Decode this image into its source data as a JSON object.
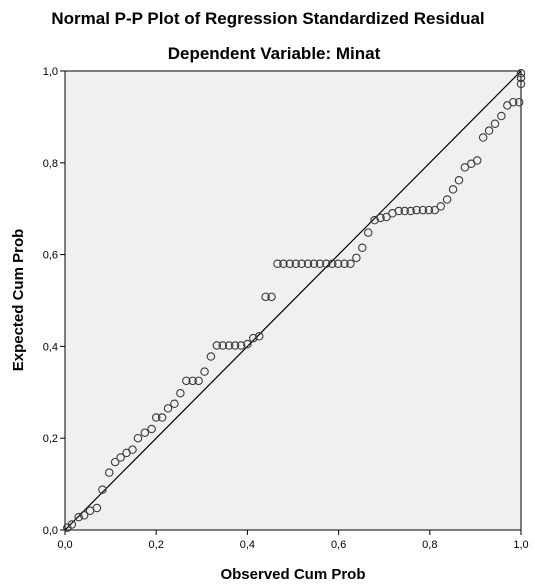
{
  "chart_data": {
    "type": "scatter",
    "title": "Normal P-P Plot of Regression Standardized Residual",
    "subtitle": "Dependent Variable: Minat",
    "xlabel": "Observed Cum Prob",
    "ylabel": "Expected Cum Prob",
    "xlim": [
      0,
      1
    ],
    "ylim": [
      0,
      1
    ],
    "x_ticks": [
      "0,0",
      "0,2",
      "0,4",
      "0,6",
      "0,8",
      "1,0"
    ],
    "y_ticks": [
      "0,0",
      "0,2",
      "0,4",
      "0,6",
      "0,8",
      "1,0"
    ],
    "grid": false,
    "background": "#f0f0f0",
    "reference_line": {
      "from": [
        0,
        0
      ],
      "to": [
        1,
        1
      ]
    },
    "points": [
      [
        0.005,
        0.005
      ],
      [
        0.015,
        0.012
      ],
      [
        0.03,
        0.028
      ],
      [
        0.042,
        0.032
      ],
      [
        0.055,
        0.042
      ],
      [
        0.07,
        0.048
      ],
      [
        0.082,
        0.088
      ],
      [
        0.097,
        0.125
      ],
      [
        0.11,
        0.148
      ],
      [
        0.122,
        0.158
      ],
      [
        0.135,
        0.168
      ],
      [
        0.148,
        0.175
      ],
      [
        0.16,
        0.2
      ],
      [
        0.175,
        0.212
      ],
      [
        0.19,
        0.22
      ],
      [
        0.2,
        0.245
      ],
      [
        0.213,
        0.245
      ],
      [
        0.226,
        0.265
      ],
      [
        0.24,
        0.275
      ],
      [
        0.253,
        0.298
      ],
      [
        0.266,
        0.325
      ],
      [
        0.28,
        0.325
      ],
      [
        0.293,
        0.325
      ],
      [
        0.306,
        0.345
      ],
      [
        0.32,
        0.378
      ],
      [
        0.333,
        0.402
      ],
      [
        0.346,
        0.402
      ],
      [
        0.36,
        0.402
      ],
      [
        0.373,
        0.402
      ],
      [
        0.386,
        0.402
      ],
      [
        0.4,
        0.405
      ],
      [
        0.413,
        0.418
      ],
      [
        0.426,
        0.422
      ],
      [
        0.44,
        0.508
      ],
      [
        0.453,
        0.508
      ],
      [
        0.466,
        0.58
      ],
      [
        0.479,
        0.58
      ],
      [
        0.493,
        0.58
      ],
      [
        0.506,
        0.58
      ],
      [
        0.519,
        0.58
      ],
      [
        0.533,
        0.58
      ],
      [
        0.546,
        0.58
      ],
      [
        0.559,
        0.58
      ],
      [
        0.573,
        0.58
      ],
      [
        0.586,
        0.58
      ],
      [
        0.599,
        0.58
      ],
      [
        0.613,
        0.58
      ],
      [
        0.626,
        0.58
      ],
      [
        0.639,
        0.593
      ],
      [
        0.652,
        0.615
      ],
      [
        0.665,
        0.648
      ],
      [
        0.679,
        0.675
      ],
      [
        0.692,
        0.68
      ],
      [
        0.705,
        0.682
      ],
      [
        0.718,
        0.69
      ],
      [
        0.732,
        0.695
      ],
      [
        0.745,
        0.695
      ],
      [
        0.758,
        0.695
      ],
      [
        0.771,
        0.697
      ],
      [
        0.785,
        0.697
      ],
      [
        0.798,
        0.697
      ],
      [
        0.811,
        0.697
      ],
      [
        0.824,
        0.705
      ],
      [
        0.838,
        0.72
      ],
      [
        0.851,
        0.742
      ],
      [
        0.864,
        0.762
      ],
      [
        0.877,
        0.79
      ],
      [
        0.891,
        0.798
      ],
      [
        0.904,
        0.805
      ],
      [
        0.917,
        0.855
      ],
      [
        0.93,
        0.87
      ],
      [
        0.943,
        0.885
      ],
      [
        0.957,
        0.902
      ],
      [
        0.97,
        0.925
      ],
      [
        0.983,
        0.932
      ],
      [
        0.996,
        0.932
      ],
      [
        1.0,
        0.972
      ],
      [
        1.0,
        0.985
      ],
      [
        1.0,
        0.995
      ]
    ]
  }
}
